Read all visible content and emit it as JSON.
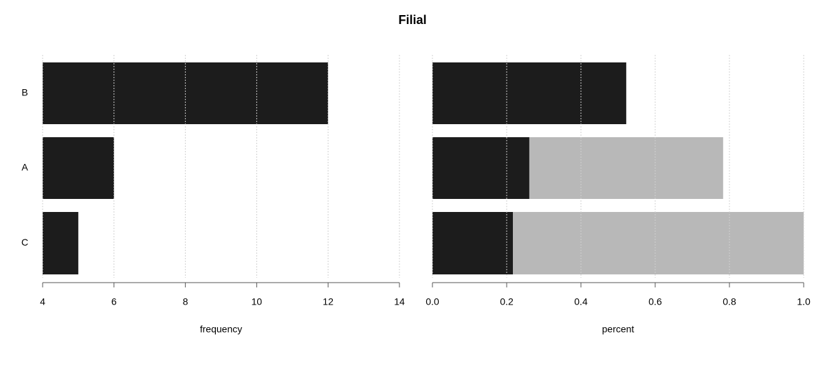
{
  "title": "Filial",
  "chart_data": [
    {
      "type": "barh",
      "xlabel": "frequency",
      "categories": [
        "B",
        "A",
        "C"
      ],
      "values": [
        12,
        6,
        5
      ],
      "color": "#1c1c1c",
      "xlim": [
        4,
        14
      ],
      "xticks": [
        4,
        6,
        8,
        10,
        12,
        14
      ],
      "grid": true
    },
    {
      "type": "stackedbarh",
      "xlabel": "percent",
      "series": [
        {
          "color": "#1c1c1c",
          "values": [
            0.522,
            0.261,
            0.217
          ]
        },
        {
          "color": "#b8b8b8",
          "values": [
            0,
            0.522,
            0.783
          ]
        }
      ],
      "xlim": [
        0,
        1
      ],
      "xticks": [
        {
          "value": 0,
          "label": "0.0"
        },
        0.2,
        0.4,
        0.6,
        0.8,
        {
          "value": 1,
          "label": "1.0"
        }
      ],
      "grid": true
    }
  ]
}
